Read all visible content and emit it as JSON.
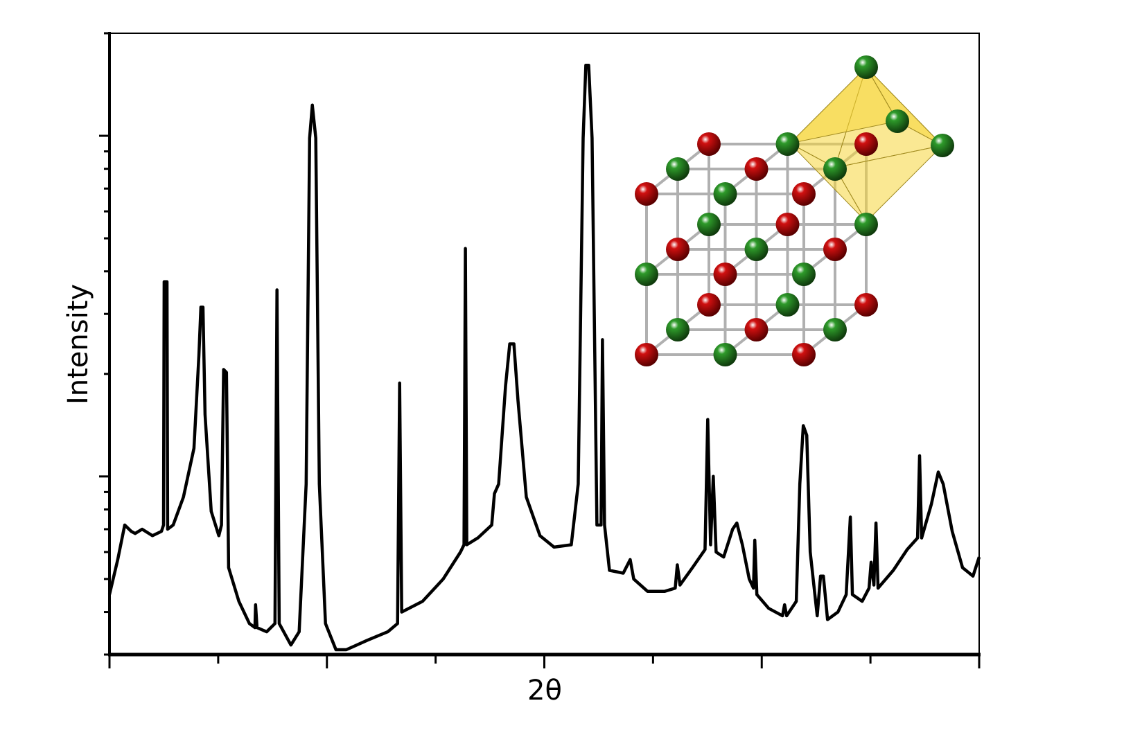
{
  "chart_data": {
    "type": "line",
    "title": "",
    "xlabel": "2θ",
    "ylabel": "Intensity",
    "x_scale": "linear",
    "y_scale": "log",
    "xlim": [
      0,
      8
    ],
    "ylim": [
      3,
      200
    ],
    "x_ticks_major": [
      0,
      2,
      4,
      6,
      8
    ],
    "x_ticks_minor": [
      1,
      3,
      5,
      7
    ],
    "y_ticks_major": [
      10,
      100
    ],
    "tick_labels_shown": false,
    "grid": false,
    "legend": "none",
    "line_color": "#000000",
    "series": [
      {
        "x": [
          0,
          0.076,
          0.14,
          0.2,
          0.236,
          0.3,
          0.395,
          0.478,
          0.497,
          0.503,
          0.529,
          0.535,
          0.586,
          0.68,
          0.777,
          0.822,
          0.841,
          0.86,
          0.879,
          0.936,
          1.006,
          1.03,
          1.05,
          1.076,
          1.096,
          1.19,
          1.287,
          1.338,
          1.344,
          1.357,
          1.446,
          1.522,
          1.541,
          1.561,
          1.669,
          1.745,
          1.809,
          1.841,
          1.866,
          1.898,
          1.93,
          1.987,
          2.083,
          2.178,
          2.369,
          2.56,
          2.65,
          2.669,
          2.688,
          2.88,
          3.07,
          3.229,
          3.261,
          3.274,
          3.287,
          3.389,
          3.516,
          3.541,
          3.58,
          3.643,
          3.682,
          3.72,
          3.758,
          3.834,
          3.96,
          4.089,
          4.248,
          4.312,
          4.357,
          4.382,
          4.408,
          4.439,
          4.484,
          4.522,
          4.535,
          4.554,
          4.599,
          4.726,
          4.79,
          4.822,
          4.949,
          5.108,
          5.204,
          5.223,
          5.248,
          5.363,
          5.478,
          5.503,
          5.529,
          5.554,
          5.58,
          5.65,
          5.732,
          5.771,
          5.822,
          5.885,
          5.924,
          5.936,
          5.955,
          6.064,
          6.191,
          6.21,
          6.229,
          6.318,
          6.35,
          6.382,
          6.414,
          6.446,
          6.51,
          6.541,
          6.567,
          6.605,
          6.701,
          6.777,
          6.815,
          6.834,
          6.924,
          6.987,
          7.006,
          7.032,
          7.051,
          7.07,
          7.21,
          7.338,
          7.433,
          7.452,
          7.471,
          7.561,
          7.624,
          7.669,
          7.752,
          7.847,
          7.943,
          8.0
        ],
        "y": [
          4.5,
          5.7,
          7.2,
          6.9,
          6.8,
          7.0,
          6.7,
          6.9,
          7.2,
          37.3,
          37.3,
          7.0,
          7.2,
          8.7,
          12.1,
          22.6,
          31.4,
          31.4,
          15.2,
          7.9,
          6.7,
          7.2,
          20.6,
          20.2,
          5.4,
          4.3,
          3.7,
          3.6,
          4.2,
          3.6,
          3.5,
          3.7,
          35.3,
          3.7,
          3.2,
          3.5,
          9.5,
          98.5,
          123,
          98.5,
          9.5,
          3.7,
          3.1,
          3.1,
          3.3,
          3.5,
          3.7,
          18.8,
          4.0,
          4.3,
          5.0,
          6.0,
          6.3,
          46.7,
          6.3,
          6.6,
          7.2,
          8.9,
          9.5,
          18.4,
          24.5,
          24.5,
          16.7,
          8.7,
          6.7,
          6.2,
          6.3,
          9.5,
          98.5,
          161,
          161,
          98.5,
          7.2,
          7.2,
          25.2,
          7.2,
          5.3,
          5.2,
          5.7,
          5.0,
          4.6,
          4.6,
          4.7,
          5.5,
          4.8,
          5.4,
          6.1,
          14.7,
          6.3,
          10,
          6.0,
          5.8,
          7.0,
          7.3,
          6.3,
          5.0,
          4.7,
          6.5,
          4.5,
          4.1,
          3.9,
          4.2,
          3.9,
          4.3,
          9.5,
          14.1,
          13.2,
          6.0,
          3.9,
          5.1,
          5.1,
          3.8,
          4.0,
          4.5,
          7.6,
          4.5,
          4.3,
          4.7,
          5.6,
          4.8,
          7.3,
          4.7,
          5.3,
          6.1,
          6.6,
          11.5,
          6.6,
          8.3,
          10.3,
          9.5,
          6.9,
          5.4,
          5.1,
          5.8
        ]
      }
    ]
  },
  "inset": {
    "type": "crystal-structure-illustration",
    "atom_colors": {
      "red": "#d01010",
      "green": "#2e9a2a"
    },
    "bond_color": "#b0b0b0",
    "polyhedron_color": "#f5d63a"
  }
}
